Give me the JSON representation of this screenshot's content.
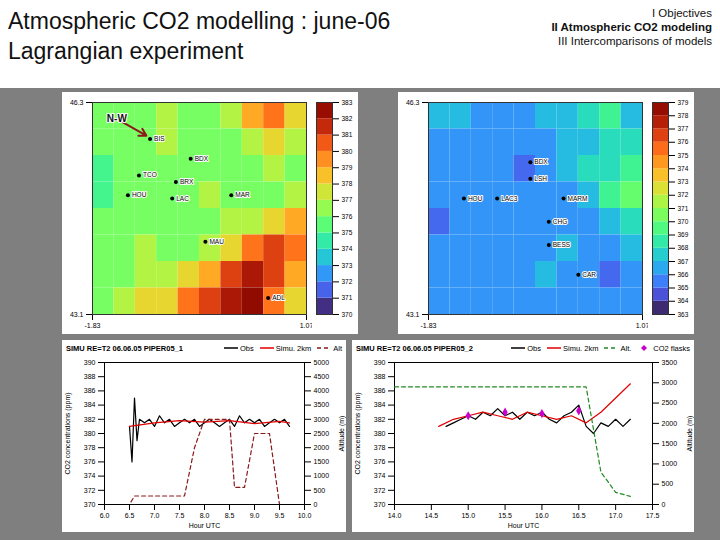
{
  "slide": {
    "title": [
      "Atmospheric CO2 modelling : june-06",
      "Lagrangian experiment"
    ],
    "outline": [
      {
        "text": "I Objectives",
        "bold": false
      },
      {
        "text": "II Atmospheric CO2 modeling",
        "bold": true
      },
      {
        "text": "III Intercomparisons of models",
        "bold": false
      }
    ]
  },
  "chart_data": [
    {
      "type": "heatmap",
      "xlim": [
        -1.83,
        1.07
      ],
      "ylim": [
        43.1,
        46.3
      ],
      "xticks": [
        -1.83,
        1.07
      ],
      "yticks": [
        43.1,
        46.3
      ],
      "cells": [
        [
          376,
          376,
          376,
          377,
          376,
          376,
          377,
          379,
          380,
          378
        ],
        [
          376,
          376,
          376,
          377,
          376,
          376,
          376,
          377,
          378,
          377
        ],
        [
          375,
          376,
          376,
          376,
          376,
          376,
          376,
          376,
          377,
          376
        ],
        [
          375,
          376,
          376,
          376,
          376,
          377,
          376,
          376,
          376,
          377
        ],
        [
          376,
          376,
          376,
          376,
          376,
          376,
          377,
          377,
          378,
          379
        ],
        [
          376,
          376,
          377,
          376,
          376,
          377,
          378,
          380,
          381,
          380
        ],
        [
          376,
          376,
          377,
          377,
          378,
          379,
          381,
          382,
          381,
          379
        ],
        [
          376,
          377,
          378,
          378,
          380,
          381,
          382,
          383,
          380,
          378
        ]
      ],
      "colorbar": {
        "range": [
          370,
          383
        ],
        "ticks": [
          370,
          371,
          372,
          373,
          374,
          375,
          376,
          377,
          378,
          379,
          380,
          381,
          382,
          383
        ]
      },
      "stations": [
        {
          "name": "BIS",
          "lon": -1.05,
          "lat": 45.75
        },
        {
          "name": "BDX",
          "lon": -0.5,
          "lat": 45.45
        },
        {
          "name": "TCO",
          "lon": -1.2,
          "lat": 45.2
        },
        {
          "name": "BRX",
          "lon": -0.7,
          "lat": 45.1
        },
        {
          "name": "HOU",
          "lon": -1.35,
          "lat": 44.9
        },
        {
          "name": "LAC",
          "lon": -0.75,
          "lat": 44.85
        },
        {
          "name": "MAR",
          "lon": 0.05,
          "lat": 44.9
        },
        {
          "name": "MAU",
          "lon": -0.3,
          "lat": 44.2
        },
        {
          "name": "ADL",
          "lon": 0.55,
          "lat": 43.35
        }
      ],
      "annotations": [
        {
          "text": "N-W",
          "lon": -1.5,
          "lat": 46.05,
          "arrow_to": [
            -1.1,
            45.8
          ]
        }
      ]
    },
    {
      "type": "heatmap",
      "xlim": [
        -1.83,
        1.07
      ],
      "ylim": [
        43.1,
        46.3
      ],
      "xticks": [
        -1.83,
        1.07
      ],
      "yticks": [
        43.1,
        46.3
      ],
      "cells": [
        [
          367,
          367,
          366,
          366,
          366,
          367,
          367,
          368,
          369,
          367
        ],
        [
          366,
          366,
          366,
          366,
          366,
          366,
          367,
          367,
          368,
          368
        ],
        [
          366,
          366,
          366,
          366,
          365,
          366,
          367,
          368,
          368,
          369
        ],
        [
          366,
          366,
          366,
          366,
          366,
          366,
          366,
          367,
          369,
          370
        ],
        [
          365,
          366,
          366,
          366,
          366,
          366,
          366,
          366,
          367,
          368
        ],
        [
          366,
          366,
          366,
          366,
          366,
          366,
          367,
          366,
          366,
          367
        ],
        [
          366,
          366,
          366,
          366,
          366,
          367,
          366,
          366,
          365,
          366
        ],
        [
          366,
          366,
          366,
          366,
          366,
          366,
          366,
          366,
          366,
          366
        ]
      ],
      "colorbar": {
        "range": [
          363,
          379
        ],
        "ticks": [
          363,
          364,
          365,
          366,
          367,
          368,
          369,
          370,
          371,
          372,
          373,
          374,
          375,
          376,
          377,
          378,
          379
        ]
      },
      "stations": [
        {
          "name": "BDX",
          "lon": -0.45,
          "lat": 45.4
        },
        {
          "name": "LSH",
          "lon": -0.45,
          "lat": 45.15
        },
        {
          "name": "HOU",
          "lon": -1.35,
          "lat": 44.85
        },
        {
          "name": "LAC3",
          "lon": -0.9,
          "lat": 44.85
        },
        {
          "name": "MARM",
          "lon": 0.0,
          "lat": 44.85
        },
        {
          "name": "CHG",
          "lon": -0.2,
          "lat": 44.5
        },
        {
          "name": "BESS",
          "lon": -0.2,
          "lat": 44.15
        },
        {
          "name": "CAR",
          "lon": 0.2,
          "lat": 43.7
        }
      ]
    },
    {
      "type": "line",
      "title": "SIMU RE=T2 06.06.05 PIPER05_1",
      "x_label": "Hour UTC",
      "y_label": "CO2 concentrations (ppm)",
      "y2_label": "Altitude (m)",
      "xlim": [
        6,
        10
      ],
      "xticks": [
        {
          "value": 6,
          "label": "6.0"
        },
        6.5,
        {
          "value": 7,
          "label": "7.0"
        },
        7.5,
        {
          "value": 8,
          "label": "8.0"
        },
        8.5,
        {
          "value": 9,
          "label": "9.0"
        },
        9.5,
        {
          "value": 10,
          "label": "10.0"
        }
      ],
      "ylim": [
        370,
        390
      ],
      "yticks": [
        370,
        372,
        374,
        376,
        378,
        380,
        382,
        384,
        386,
        388,
        390
      ],
      "y2lim": [
        0,
        5000
      ],
      "y2ticks": [
        0,
        500,
        1000,
        1500,
        2000,
        2500,
        3000,
        3500,
        4000,
        4500,
        5000
      ],
      "grid": false,
      "legend": "top-right",
      "series": [
        {
          "name": "Obs",
          "color": "#000000",
          "line_style": "solid",
          "x": [
            6.5,
            6.55,
            6.6,
            6.65,
            6.7,
            6.8,
            6.9,
            7.0,
            7.1,
            7.2,
            7.3,
            7.4,
            7.5,
            7.6,
            7.7,
            7.8,
            7.9,
            8.0,
            8.1,
            8.2,
            8.3,
            8.4,
            8.5,
            8.6,
            8.7,
            8.8,
            8.9,
            9.0,
            9.1,
            9.2,
            9.3,
            9.4,
            9.5,
            9.6,
            9.7
          ],
          "values": [
            381,
            376,
            385,
            379,
            382,
            381.5,
            382,
            381,
            382.5,
            381.5,
            382,
            381,
            381.5,
            382,
            381.5,
            382,
            381,
            381.5,
            382,
            381.5,
            381,
            381.5,
            382,
            381,
            382.5,
            381.5,
            382,
            381.5,
            382,
            381,
            381.5,
            382,
            381.5,
            382,
            381
          ]
        },
        {
          "name": "Simu. 2km",
          "color": "#e00000",
          "line_style": "solid",
          "x": [
            6.5,
            7.0,
            7.5,
            8.0,
            8.5,
            9.0,
            9.5,
            9.7
          ],
          "values": [
            381,
            381.5,
            381.8,
            381.6,
            381.8,
            381.4,
            381.7,
            381.5
          ]
        },
        {
          "name": "Alt",
          "color": "#8b1a1a",
          "line_style": "dashed",
          "axis": "y2",
          "x": [
            6.0,
            6.5,
            6.6,
            7.6,
            7.8,
            8.0,
            8.5,
            8.6,
            8.8,
            9.0,
            9.3,
            9.5,
            10.0
          ],
          "values": [
            0,
            0,
            300,
            300,
            2000,
            3000,
            3000,
            600,
            600,
            2500,
            2500,
            0,
            0
          ]
        }
      ]
    },
    {
      "type": "line",
      "title": "SIMU RE=T2 06.06.05 PIPER05_2",
      "x_label": "Hour UTC",
      "y_label": "CO2 concentrations (ppm)",
      "y2_label": "Altitude (m)",
      "xlim": [
        14,
        17.5
      ],
      "xticks": [
        {
          "value": 14,
          "label": "14.0"
        },
        14.5,
        {
          "value": 15,
          "label": "15.0"
        },
        15.5,
        {
          "value": 16,
          "label": "16.0"
        },
        16.5,
        {
          "value": 17,
          "label": "17.0"
        },
        17.5
      ],
      "ylim": [
        370,
        390
      ],
      "yticks": [
        370,
        372,
        374,
        376,
        378,
        380,
        382,
        384,
        386,
        388,
        390
      ],
      "y2lim": [
        0,
        3500
      ],
      "y2ticks": [
        0,
        500,
        1000,
        1500,
        2000,
        2500,
        3000,
        3500
      ],
      "grid": false,
      "legend": "top-right",
      "series": [
        {
          "name": "Obs",
          "color": "#000000",
          "line_style": "solid",
          "x": [
            14.7,
            14.8,
            14.9,
            15.0,
            15.1,
            15.2,
            15.3,
            15.4,
            15.5,
            15.6,
            15.7,
            15.8,
            15.9,
            16.0,
            16.1,
            16.2,
            16.3,
            16.4,
            16.5,
            16.6,
            16.7,
            16.8,
            16.9,
            17.0,
            17.1,
            17.2
          ],
          "values": [
            381,
            381.5,
            382,
            382.5,
            382,
            383,
            382.5,
            383.5,
            382.5,
            383,
            382,
            383,
            382.5,
            383,
            382,
            381.5,
            382.5,
            383,
            384,
            381,
            380,
            381.5,
            381,
            382,
            381,
            382
          ]
        },
        {
          "name": "Simu. 2km",
          "color": "#e00000",
          "line_style": "solid",
          "x": [
            14.6,
            14.8,
            15.0,
            15.2,
            15.4,
            15.6,
            15.8,
            16.0,
            16.2,
            16.4,
            16.6,
            16.8,
            17.0,
            17.2
          ],
          "values": [
            381,
            382,
            382.5,
            383,
            382.5,
            382,
            383,
            382.5,
            382,
            382.5,
            381.5,
            383,
            385,
            387
          ]
        },
        {
          "name": "Alt.",
          "color": "#228b22",
          "line_style": "dashed",
          "axis": "y2",
          "x": [
            14.0,
            14.6,
            14.8,
            16.6,
            16.8,
            17.0,
            17.2
          ],
          "values": [
            2900,
            2900,
            2900,
            2900,
            800,
            300,
            200
          ]
        },
        {
          "name": "CO2 flasks",
          "type": "scatter",
          "marker": "diamond",
          "color": "#cc00cc",
          "x": [
            15.0,
            15.5,
            16.0,
            16.5
          ],
          "values": [
            382.5,
            383,
            382.8,
            383.2
          ]
        }
      ]
    }
  ]
}
